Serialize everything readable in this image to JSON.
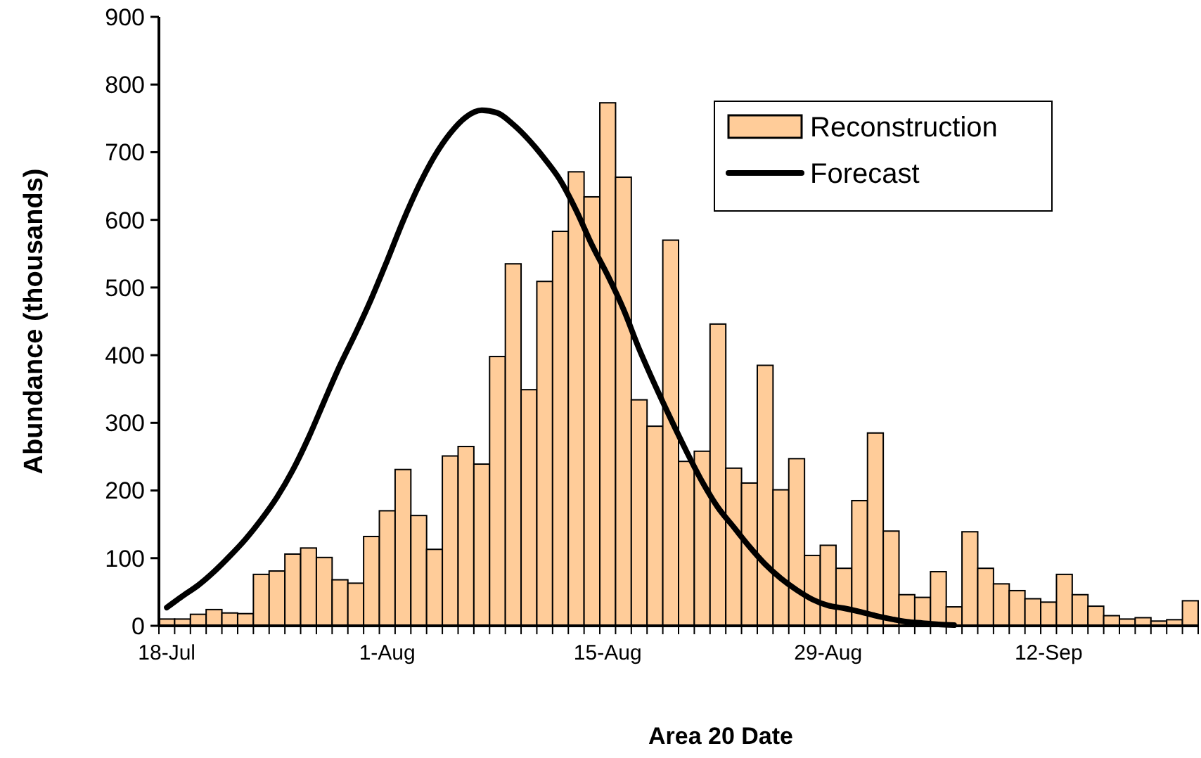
{
  "chart_data": {
    "type": "bar",
    "xlabel": "Area 20 Date",
    "ylabel": "Abundance (thousands)",
    "ylim": [
      0,
      900
    ],
    "yticks": [
      0,
      100,
      200,
      300,
      400,
      500,
      600,
      700,
      800,
      900
    ],
    "categories": [
      "18-Jul",
      null,
      null,
      null,
      null,
      null,
      null,
      null,
      null,
      null,
      null,
      null,
      null,
      null,
      "1-Aug",
      null,
      null,
      null,
      null,
      null,
      null,
      null,
      null,
      null,
      null,
      null,
      null,
      null,
      "15-Aug",
      null,
      null,
      null,
      null,
      null,
      null,
      null,
      null,
      null,
      null,
      null,
      null,
      null,
      "29-Aug",
      null,
      null,
      null,
      null,
      null,
      null,
      null,
      null,
      null,
      null,
      null,
      null,
      null,
      "12-Sep",
      null,
      null,
      null,
      null,
      null,
      null,
      null,
      null,
      null
    ],
    "series": [
      {
        "name": "Reconstruction",
        "color": "#ffcc99",
        "values": [
          10,
          10,
          17,
          24,
          19,
          18,
          76,
          81,
          106,
          115,
          101,
          68,
          63,
          132,
          170,
          231,
          163,
          113,
          251,
          265,
          239,
          398,
          535,
          349,
          509,
          583,
          671,
          634,
          773,
          663,
          334,
          295,
          570,
          243,
          258,
          446,
          233,
          211,
          385,
          201,
          247,
          104,
          119,
          85,
          185,
          285,
          140,
          46,
          42,
          80,
          28,
          139,
          85,
          62,
          52,
          40,
          35,
          76,
          46,
          29,
          15,
          10,
          12,
          7,
          9,
          37
        ]
      },
      {
        "name": "Forecast",
        "type": "line",
        "color": "#000000",
        "values": [
          27,
          44,
          60,
          80,
          103,
          128,
          157,
          190,
          230,
          278,
          332,
          385,
          433,
          484,
          540,
          598,
          650,
          694,
          728,
          752,
          762,
          758,
          741,
          718,
          690,
          658,
          614,
          563,
          518,
          468,
          409,
          356,
          306,
          258,
          213,
          175,
          146,
          117,
          91,
          70,
          53,
          39,
          30,
          26,
          21,
          15,
          10,
          6,
          4,
          2,
          1,
          null,
          null,
          null,
          null,
          null,
          null,
          null,
          null,
          null,
          null,
          null,
          null,
          null,
          null,
          null
        ]
      }
    ],
    "legend": "top right",
    "grid": false,
    "marker": "none",
    "line_style": "solid"
  }
}
